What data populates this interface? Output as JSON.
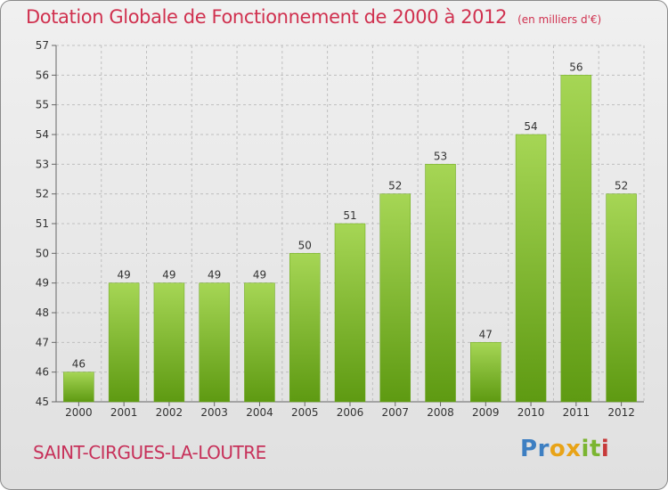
{
  "header": {
    "title": "Dotation Globale de Fonctionnement de 2000 à 2012",
    "subtitle": "(en milliers d'€)"
  },
  "footer": {
    "commune": "SAINT-CIRGUES-LA-LOUTRE",
    "logo_text": "Proxiti"
  },
  "colors": {
    "title": "#d0314f",
    "bar_light": "#a6d655",
    "bar_dark": "#5e9a12",
    "grid": "#bfbfbf"
  },
  "chart_data": {
    "type": "bar",
    "title": "Dotation Globale de Fonctionnement de 2000 à 2012",
    "subtitle": "(en milliers d'€)",
    "categories": [
      "2000",
      "2001",
      "2002",
      "2003",
      "2004",
      "2005",
      "2006",
      "2007",
      "2008",
      "2009",
      "2010",
      "2011",
      "2012"
    ],
    "values": [
      46,
      49,
      49,
      49,
      49,
      50,
      51,
      52,
      53,
      47,
      54,
      56,
      52
    ],
    "ylim": [
      45,
      57
    ],
    "yticks": [
      45,
      46,
      47,
      48,
      49,
      50,
      51,
      52,
      53,
      54,
      55,
      56,
      57
    ],
    "grid": true,
    "xlabel": "",
    "ylabel": ""
  }
}
